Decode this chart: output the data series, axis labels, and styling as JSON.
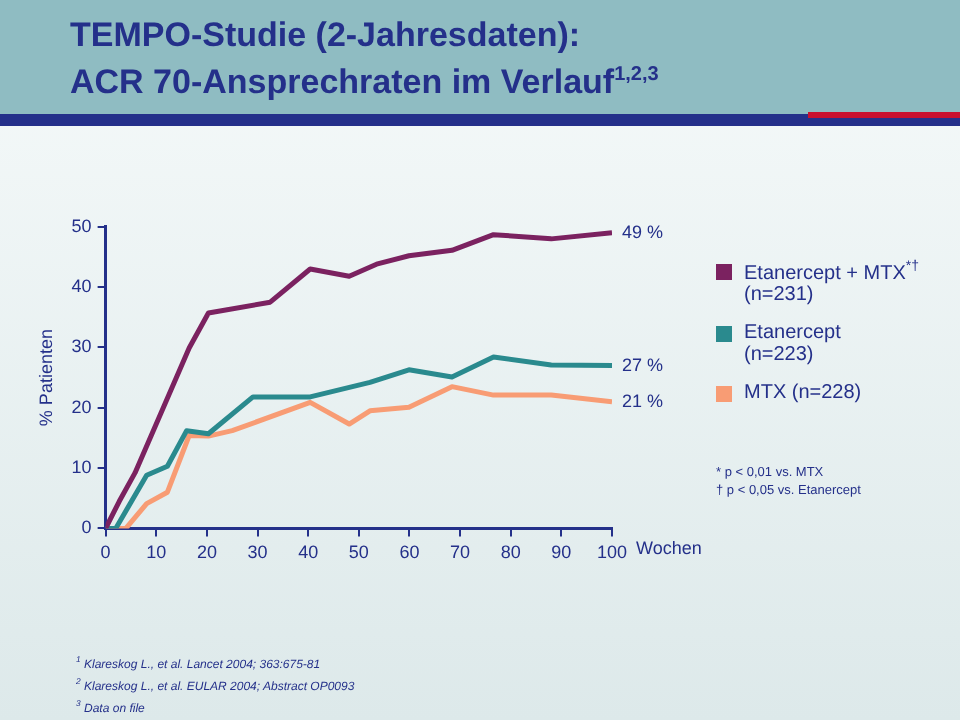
{
  "chart_data": {
    "type": "line",
    "title": "TEMPO-Studie (2-Jahresdaten):\nACR 70-Ansprechraten im Verlauf$^{1,2,3}$",
    "ylabel": "% Patienten",
    "xlabel": "Wochen",
    "xlim": [
      0,
      100
    ],
    "xticks": [
      0,
      10,
      20,
      30,
      40,
      50,
      60,
      70,
      80,
      90,
      100
    ],
    "ylim": [
      0,
      50
    ],
    "yticks": [
      0,
      10,
      20,
      30,
      40,
      50
    ],
    "grid": false,
    "legend": "right",
    "marker": "none",
    "line_style": "solid",
    "series": [
      {
        "name": "Etanercept + MTX$^{*†}$\n(n=231)",
        "color": "#7b2260",
        "x": [
          0,
          2.7,
          5.8,
          16.5,
          20.3,
          32.5,
          40.4,
          48.1,
          53.5,
          59.9,
          68.4,
          76.6,
          88,
          100
        ],
        "values": [
          0,
          4.5,
          9.2,
          29.9,
          35.7,
          37.5,
          43,
          41.8,
          43.8,
          45.2,
          46.1,
          48.7,
          48,
          49
        ],
        "value_labels": [
          null,
          null,
          null,
          null,
          null,
          null,
          null,
          null,
          null,
          null,
          null,
          null,
          null,
          "49 %"
        ]
      },
      {
        "name": "Etanercept\n(n=223)",
        "color": "#2a8a8e",
        "x": [
          0,
          2,
          8.1,
          12.2,
          16,
          20.3,
          29.1,
          40.4,
          52.2,
          59.9,
          68.4,
          76.6,
          88,
          100
        ],
        "values": [
          0,
          0,
          8.8,
          10.3,
          16.2,
          15.7,
          21.8,
          21.8,
          24.2,
          26.3,
          25.1,
          28.4,
          27.1,
          27
        ],
        "value_labels": [
          null,
          null,
          null,
          null,
          null,
          null,
          null,
          null,
          null,
          null,
          null,
          null,
          null,
          "27 %"
        ]
      },
      {
        "name": "MTX (n=228)",
        "color": "#f89c74",
        "x": [
          0,
          4,
          8.1,
          12.2,
          16.5,
          20.3,
          25,
          40.4,
          48.1,
          52.2,
          59.9,
          68.4,
          76.6,
          88,
          100
        ],
        "values": [
          0,
          0,
          4.1,
          6,
          15.4,
          15.3,
          16.2,
          20.9,
          17.3,
          19.5,
          20.1,
          23.5,
          22.1,
          22.1,
          21
        ],
        "value_labels": [
          null,
          null,
          null,
          null,
          null,
          null,
          null,
          null,
          null,
          null,
          null,
          null,
          null,
          null,
          "21 %"
        ]
      }
    ],
    "annotations": [
      "* p < 0,01 vs. MTX",
      "† p < 0,05 vs. Etanercept",
      "$^{1}$ Klareskog L., et al. Lancet 2004; 363:675-81",
      "$^{2}$ Klareskog L., et al. EULAR 2004; Abstract OP0093",
      "$^{3}$ Data on file"
    ]
  }
}
